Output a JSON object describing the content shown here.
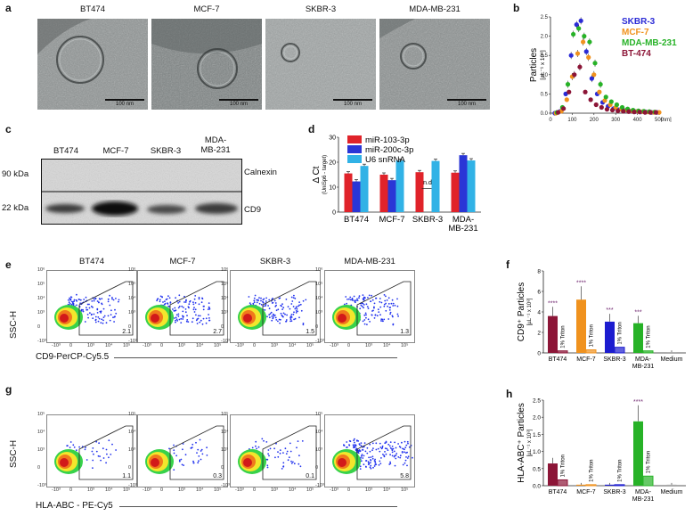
{
  "panels": {
    "a": {
      "letter": "a",
      "lines": [
        "BT474",
        "MCF-7",
        "SKBR-3",
        "MDA-MB-231"
      ],
      "scale_bar": "100 nm"
    },
    "b": {
      "letter": "b"
    },
    "c": {
      "letter": "c",
      "lanes": [
        "BT474",
        "MCF-7",
        "SKBR-3",
        "MDA-\nMB-231"
      ],
      "markers": [
        "90 kDa",
        "22 kDa"
      ],
      "proteins": [
        "Calnexin",
        "CD9"
      ]
    },
    "d": {
      "letter": "d"
    },
    "e": {
      "letter": "e",
      "lines": [
        "BT474",
        "MCF-7",
        "SKBR-3",
        "MDA-MB-231"
      ],
      "percents": [
        "2.1",
        "2.7",
        "1.5",
        "1.3"
      ],
      "ylabel": "SSC-H",
      "xlabel": "CD9-PerCP-Cy5.5"
    },
    "f": {
      "letter": "f"
    },
    "g": {
      "letter": "g",
      "percents": [
        "1.1",
        "0.3",
        "0.1",
        "5.8"
      ],
      "ylabel": "SSC-H",
      "xlabel": "HLA-ABC - PE-Cy5"
    },
    "h": {
      "letter": "h"
    }
  },
  "flow_axis": {
    "y_ticks": [
      "10⁶",
      "10⁵",
      "10⁴",
      "10³",
      "0",
      "-10³"
    ],
    "x_ticks": [
      "-10³",
      "0",
      "10³",
      "10⁴",
      "10⁵"
    ],
    "y_ticks_g": [
      "10⁵",
      "10⁴",
      "10³",
      "0",
      "-10³"
    ]
  },
  "chart_data": [
    {
      "id": "b",
      "type": "scatter",
      "ylabel": "Particles [µL⁻¹ x 10⁸]",
      "xlabel": "[nm]",
      "xlim": [
        0,
        500
      ],
      "ylim": [
        0,
        2.5
      ],
      "xticks": [
        0,
        100,
        200,
        300,
        400,
        500
      ],
      "yticks": [
        0.0,
        0.5,
        1.0,
        1.5,
        2.0,
        2.5
      ],
      "legend": [
        "SKBR-3",
        "MCF-7",
        "MDA-MB-231",
        "BT-474"
      ],
      "colors": {
        "SKBR-3": "#2b2bd6",
        "MCF-7": "#f0921e",
        "MDA-MB-231": "#27b227",
        "BT-474": "#8c1537"
      },
      "series": [
        {
          "name": "SKBR-3",
          "x": [
            20,
            45,
            70,
            95,
            120,
            140,
            165,
            190,
            215,
            240,
            265,
            290,
            315,
            340,
            365,
            390,
            415,
            440,
            465,
            490
          ],
          "values": [
            0,
            0.05,
            0.5,
            1.5,
            2.3,
            2.4,
            1.6,
            0.9,
            0.5,
            0.28,
            0.18,
            0.12,
            0.09,
            0.07,
            0.05,
            0.04,
            0.03,
            0.03,
            0.02,
            0.02
          ]
        },
        {
          "name": "MCF-7",
          "x": [
            25,
            50,
            75,
            100,
            125,
            150,
            175,
            200,
            225,
            250,
            275,
            300,
            325,
            350,
            375,
            400,
            425,
            450,
            475,
            500
          ],
          "values": [
            0,
            0.05,
            0.35,
            0.95,
            1.55,
            1.85,
            1.45,
            1.0,
            0.55,
            0.33,
            0.22,
            0.15,
            0.1,
            0.08,
            0.06,
            0.05,
            0.04,
            0.03,
            0.02,
            0.02
          ]
        },
        {
          "name": "MDA-MB-231",
          "x": [
            30,
            55,
            80,
            105,
            130,
            155,
            180,
            205,
            230,
            255,
            280,
            305,
            330,
            355,
            380,
            405,
            430,
            455,
            480,
            505
          ],
          "values": [
            0.02,
            0.15,
            0.75,
            2.05,
            2.2,
            2.0,
            1.85,
            1.3,
            0.75,
            0.42,
            0.3,
            0.22,
            0.15,
            0.11,
            0.08,
            0.06,
            0.05,
            0.04,
            0.03,
            0.02
          ]
        },
        {
          "name": "BT-474",
          "x": [
            35,
            60,
            85,
            110,
            135,
            160,
            185,
            210,
            235,
            260,
            285,
            310,
            335,
            360,
            385,
            410,
            435,
            460,
            485,
            510
          ],
          "values": [
            0.02,
            0.12,
            0.55,
            1.0,
            1.2,
            0.55,
            0.35,
            0.22,
            0.15,
            0.1,
            0.08,
            0.06,
            0.05,
            0.04,
            0.03,
            0.03,
            0.02,
            0.02,
            0.02,
            0.01
          ]
        }
      ]
    },
    {
      "id": "d",
      "type": "bar",
      "ylabel": "Δ Ct",
      "ylabel_sub": "(UniSp6 - target)",
      "ylim": [
        0,
        30
      ],
      "yticks": [
        0,
        10,
        20,
        30
      ],
      "categories": [
        "BT474",
        "MCF-7",
        "SKBR-3",
        "MDA-\nMB-231"
      ],
      "annotation": "n.d",
      "series": [
        {
          "name": "miR-103-3p",
          "color": "#e0232a",
          "values": [
            15.5,
            15.0,
            16.0,
            15.8
          ]
        },
        {
          "name": "miR-200c-3p",
          "color": "#2a36d6",
          "values": [
            12.3,
            12.8,
            null,
            22.8
          ]
        },
        {
          "name": "U6 snRNA",
          "color": "#31b2e6",
          "values": [
            18.5,
            20.6,
            20.5,
            20.7
          ]
        }
      ]
    },
    {
      "id": "f",
      "type": "bar",
      "ylabel": "CD9⁺ Particles",
      "ylabel_sub": "[µL⁻¹ x 10⁸]",
      "ylim": [
        0,
        8
      ],
      "yticks": [
        0,
        2,
        4,
        6,
        8
      ],
      "categories": [
        "BT474",
        "MCF-7",
        "SKBR-3",
        "MDA-\nMB-231",
        "Medium"
      ],
      "bar_label": "1% Triton",
      "colors": [
        "#8c1537",
        "#f0921e",
        "#1c1ccf",
        "#27b227",
        "#aaaaaa"
      ],
      "series": [
        {
          "name": "Untreated",
          "values": [
            3.6,
            5.2,
            3.05,
            2.9,
            0.08
          ]
        },
        {
          "name": "1% Triton",
          "values": [
            0.2,
            0.3,
            0.55,
            0.2,
            null
          ]
        }
      ],
      "significance": [
        "****",
        "****",
        "***",
        "***",
        ""
      ]
    },
    {
      "id": "h",
      "type": "bar",
      "ylabel": "HLA-ABC⁺ Particles",
      "ylabel_sub": "[µL⁻¹ x 10⁸]",
      "ylim": [
        0,
        2.5
      ],
      "yticks": [
        0.0,
        0.5,
        1.0,
        1.5,
        2.0,
        2.5
      ],
      "categories": [
        "BT474",
        "MCF-7",
        "SKBR-3",
        "MDA-\nMB-231",
        "Medium"
      ],
      "bar_label": "1% Triton",
      "colors": [
        "#8c1537",
        "#f0921e",
        "#1c1ccf",
        "#27b227",
        "#aaaaaa"
      ],
      "series": [
        {
          "name": "Untreated",
          "values": [
            0.65,
            0.03,
            0.03,
            1.88,
            0.03
          ]
        },
        {
          "name": "1% Triton",
          "values": [
            0.17,
            0.03,
            0.03,
            0.28,
            null
          ]
        }
      ],
      "significance": [
        "",
        "",
        "",
        "****",
        ""
      ]
    }
  ]
}
